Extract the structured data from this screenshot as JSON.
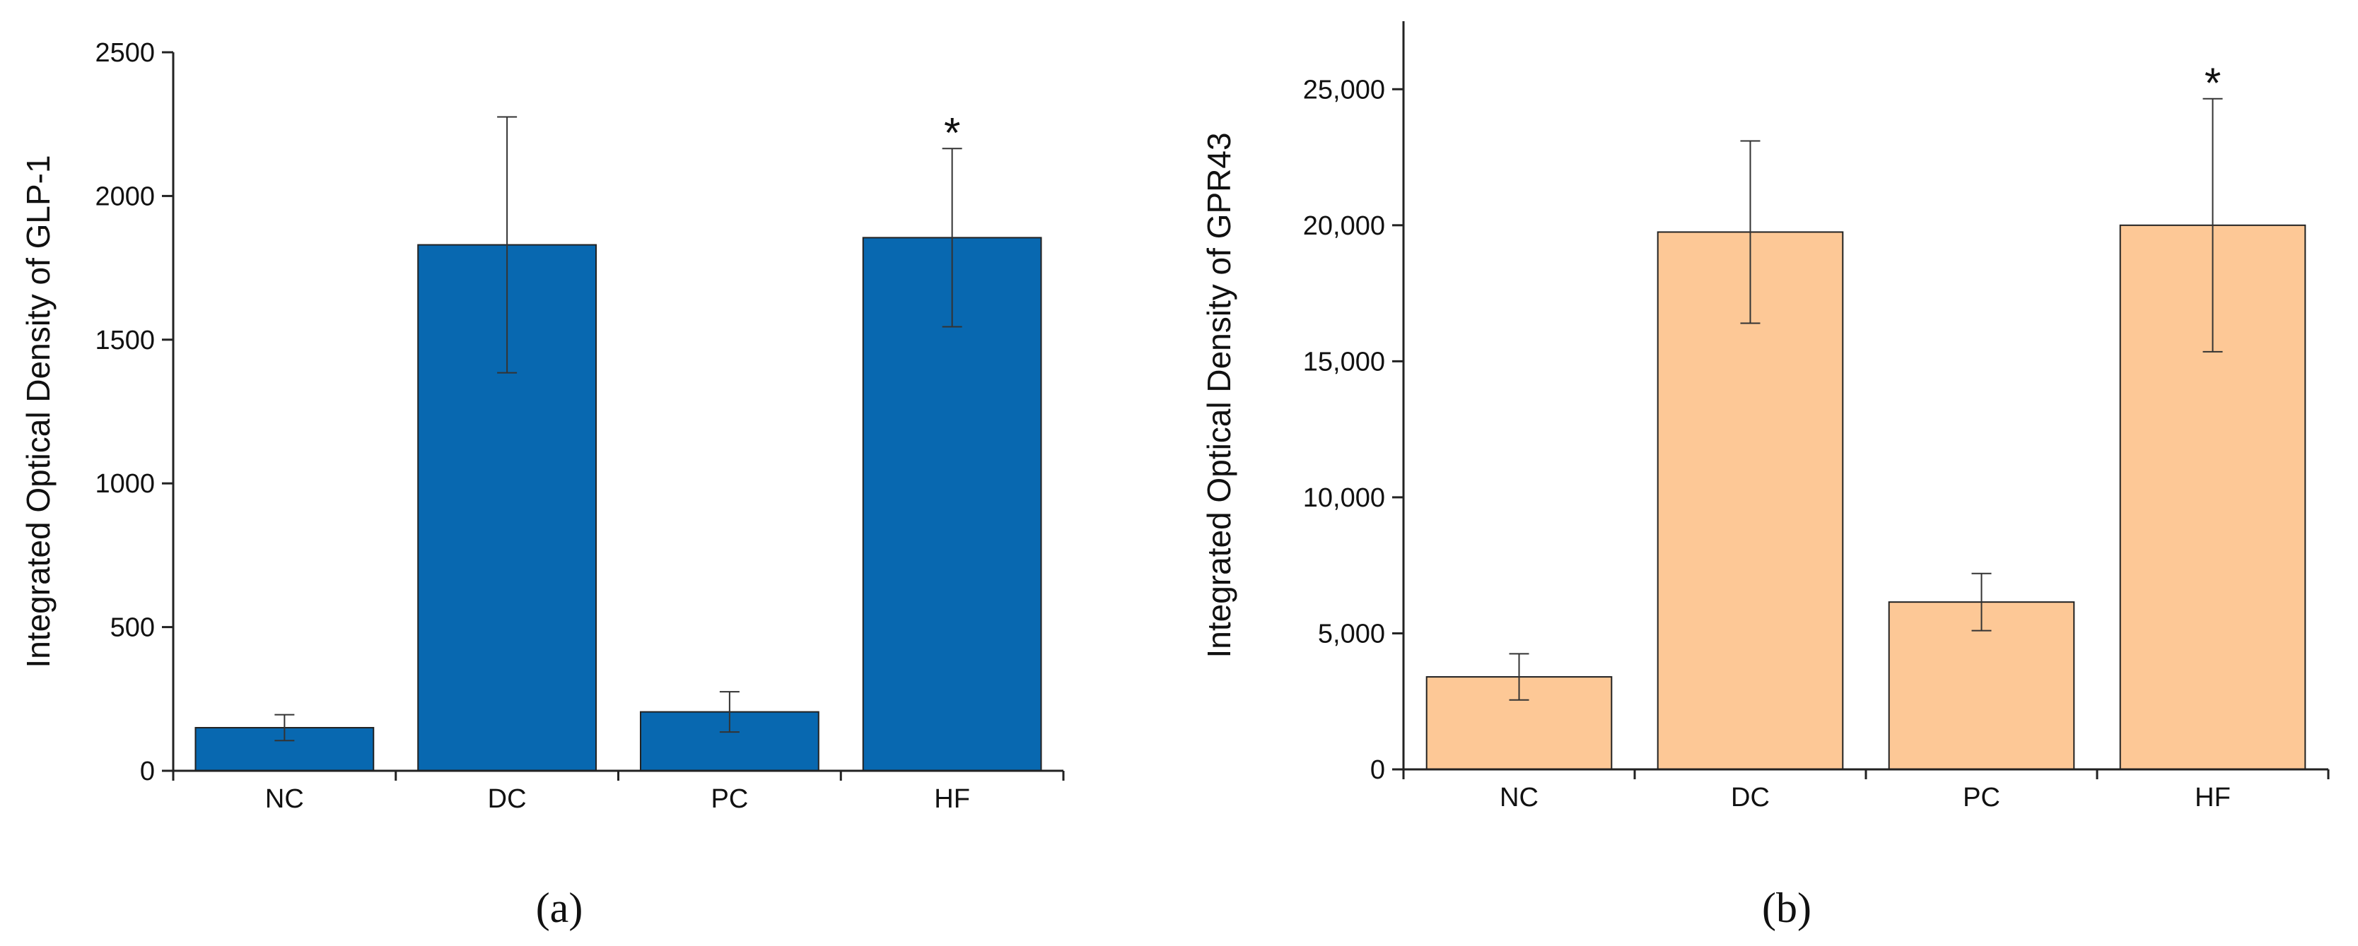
{
  "chart_data": [
    {
      "type": "bar",
      "caption": "(a)",
      "ylabel": "Integrated Optical Density of GLP-1",
      "categories": [
        "NC",
        "DC",
        "PC",
        "HF"
      ],
      "values": [
        150,
        1830,
        205,
        1855
      ],
      "errors": [
        45,
        445,
        70,
        310
      ],
      "color": "#0868b0",
      "ylim": [
        0,
        2500
      ],
      "yticks": [
        0,
        500,
        1000,
        1500,
        2000,
        2500
      ],
      "annotations": [
        {
          "text": "*",
          "category": "HF"
        }
      ]
    },
    {
      "type": "bar",
      "caption": "(b)",
      "ylabel": "Integrated Optical Density of GPR43",
      "categories": [
        "NC",
        "DC",
        "PC",
        "HF"
      ],
      "values": [
        3400,
        19750,
        6150,
        20000
      ],
      "errors": [
        850,
        3350,
        1050,
        4650
      ],
      "color": "#fdc896",
      "ylim": [
        0,
        27500
      ],
      "yticks": [
        0,
        {
          "value": 5000,
          "label": "5,000"
        },
        {
          "value": 10000,
          "label": "10,000"
        },
        {
          "value": 15000,
          "label": "15,000"
        },
        {
          "value": 20000,
          "label": "20,000"
        },
        {
          "value": 25000,
          "label": "25,000"
        }
      ],
      "annotations": [
        {
          "text": "*",
          "category": "HF"
        }
      ]
    }
  ]
}
